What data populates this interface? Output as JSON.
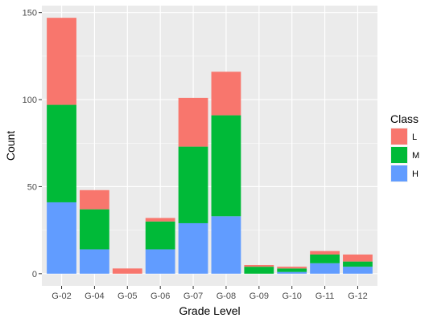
{
  "chart_data": {
    "type": "bar",
    "stacked": true,
    "title": "",
    "xlabel": "Grade Level",
    "ylabel": "Count",
    "ylim": [
      -7,
      154
    ],
    "yticks": [
      0,
      50,
      100,
      150
    ],
    "categories": [
      "G-02",
      "G-04",
      "G-05",
      "G-06",
      "G-07",
      "G-08",
      "G-09",
      "G-10",
      "G-11",
      "G-12"
    ],
    "series": [
      {
        "name": "H",
        "color": "#619CFF",
        "values": [
          41,
          14,
          0,
          14,
          29,
          33,
          0,
          1,
          6,
          4
        ]
      },
      {
        "name": "M",
        "color": "#00BA38",
        "values": [
          56,
          23,
          0,
          16,
          44,
          58,
          4,
          2,
          5,
          3
        ]
      },
      {
        "name": "L",
        "color": "#F8766D",
        "values": [
          50,
          11,
          3,
          2,
          28,
          25,
          1,
          1,
          2,
          4
        ]
      }
    ],
    "legend": {
      "title": "Class",
      "position": "right",
      "order": [
        "L",
        "M",
        "H"
      ]
    },
    "panel_background": "#EBEBEB",
    "grid": true
  }
}
